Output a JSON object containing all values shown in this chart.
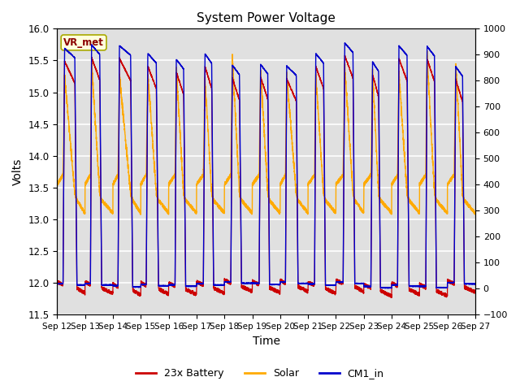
{
  "title": "System Power Voltage",
  "xlabel": "Time",
  "ylabel_left": "Volts",
  "ylim_left": [
    11.5,
    16.0
  ],
  "ylim_right": [
    -100,
    1000
  ],
  "yticks_left": [
    11.5,
    12.0,
    12.5,
    13.0,
    13.5,
    14.0,
    14.5,
    15.0,
    15.5,
    16.0
  ],
  "yticks_right": [
    -100,
    0,
    100,
    200,
    300,
    400,
    500,
    600,
    700,
    800,
    900,
    1000
  ],
  "legend_labels": [
    "23x Battery",
    "Solar",
    "CM1_in"
  ],
  "legend_colors": [
    "#cc0000",
    "#ffaa00",
    "#0000cc"
  ],
  "annotation_text": "VR_met",
  "annotation_color": "#8b0000",
  "annotation_bg": "#ffffdd",
  "background_color": "#e0e0e0",
  "grid_color": "#ffffff",
  "num_days": 15,
  "x_tick_labels": [
    "Sep 12",
    "Sep 13",
    "Sep 14",
    "Sep 15",
    "Sep 16",
    "Sep 17",
    "Sep 18",
    "Sep 19",
    "Sep 20",
    "Sep 21",
    "Sep 22",
    "Sep 23",
    "Sep 24",
    "Sep 25",
    "Sep 26",
    "Sep 27"
  ]
}
